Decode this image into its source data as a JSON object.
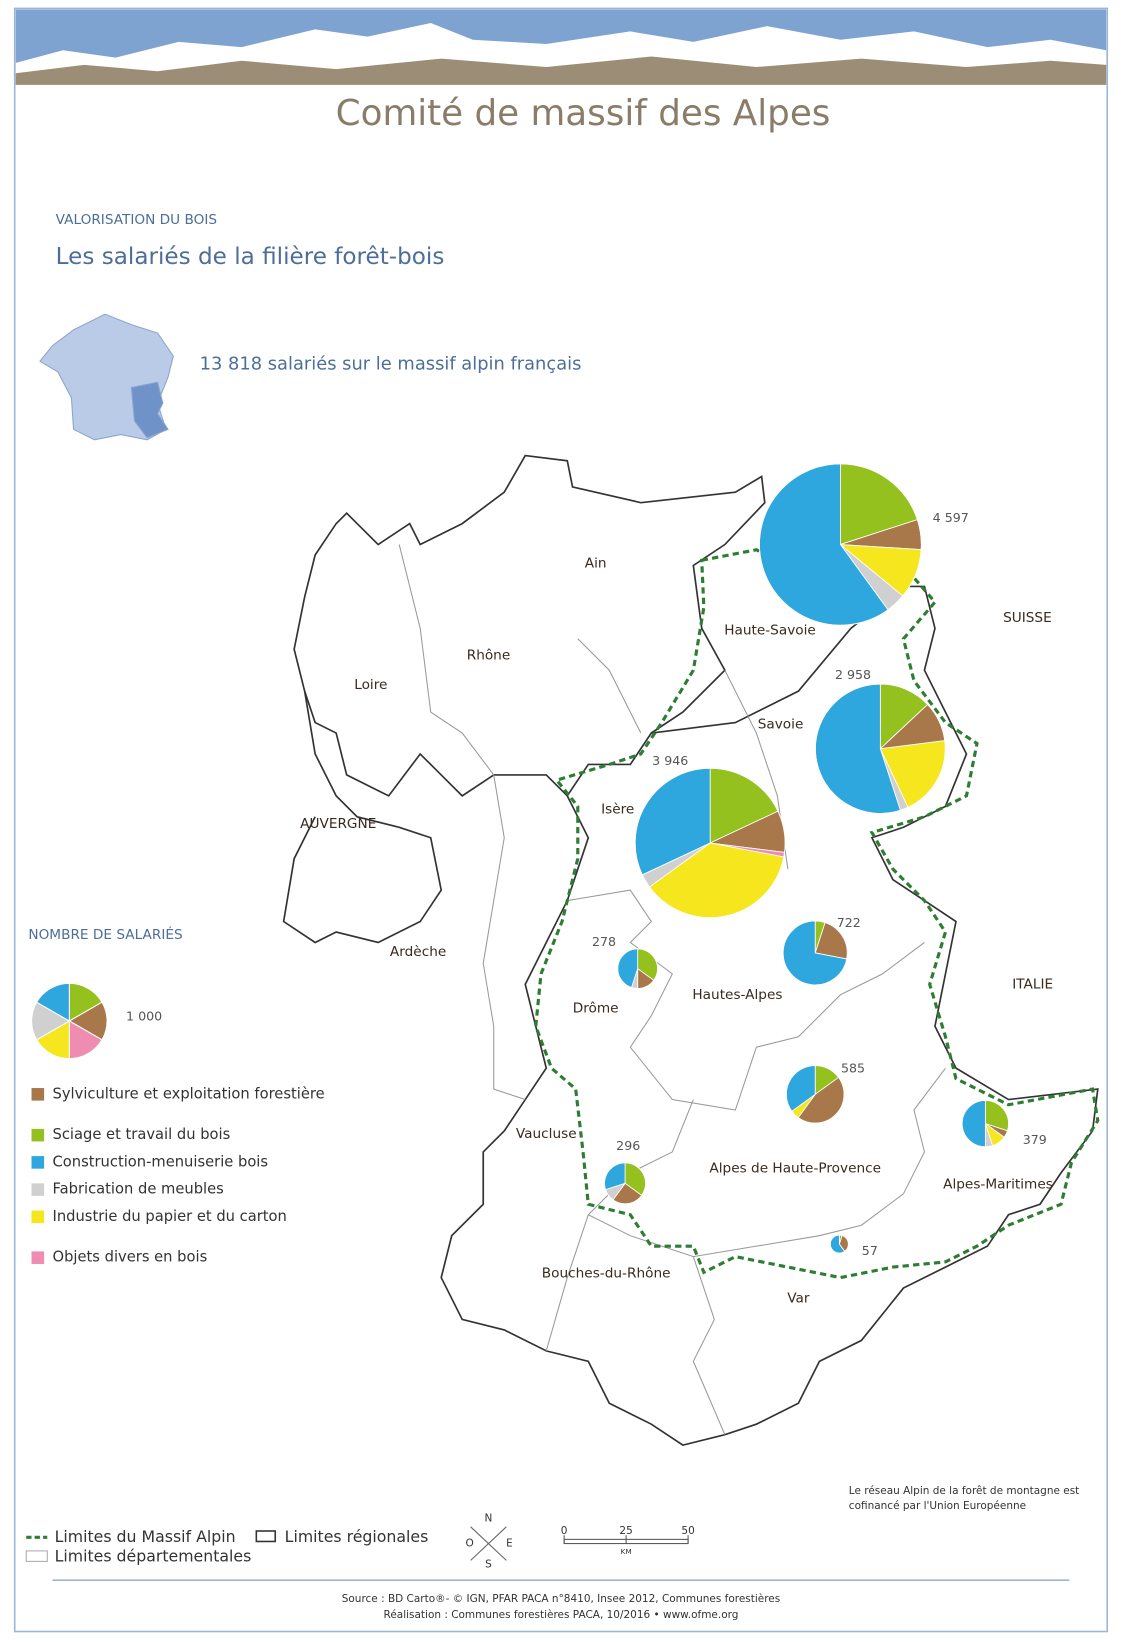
{
  "header": {
    "title": "Comité de massif des Alpes"
  },
  "section": "VALORISATION DU BOIS",
  "subtitle": "Les salariés de la filière forêt-bois",
  "total_note": "13 818 salariés sur le massif alpin français",
  "places": [
    "Ain",
    "Haute-Savoie",
    "Rhône",
    "Loire",
    "Savoie",
    "Isère",
    "AUVERGNE",
    "Ardèche",
    "Drôme",
    "Hautes-Alpes",
    "Vaucluse",
    "Alpes de Haute-Provence",
    "Alpes-Maritimes",
    "Bouches-du-Rhône",
    "Var",
    "SUISSE",
    "ITALIE"
  ],
  "legend": {
    "title": "NOMBRE DE SALARIÉS",
    "size": {
      "value": 1000,
      "label": "1 000"
    },
    "categories": [
      {
        "name": "Sylviculture et exploitation forestière",
        "color": "#a9784a"
      },
      {
        "name": "Sciage et travail du bois",
        "color": "#95c11f"
      },
      {
        "name": "Construction-menuiserie bois",
        "color": "#2ea6de"
      },
      {
        "name": "Fabrication de meubles",
        "color": "#d0d0d0"
      },
      {
        "name": "Industrie du papier et du carton",
        "color": "#f5e61d"
      },
      {
        "name": "Objets divers en bois",
        "color": "#ee8cb1"
      }
    ]
  },
  "pies": [
    {
      "department": "Haute-Savoie",
      "total": {
        "value": 4597,
        "label": "4 597"
      },
      "shares": [
        6,
        20,
        60,
        4,
        10,
        0
      ]
    },
    {
      "department": "Savoie",
      "total": {
        "value": 2958,
        "label": "2 958"
      },
      "shares": [
        10,
        13,
        55,
        2,
        20,
        0
      ]
    },
    {
      "department": "Isère",
      "total": {
        "value": 3946,
        "label": "3 946"
      },
      "shares": [
        9,
        18,
        32,
        3,
        37,
        1
      ]
    },
    {
      "department": "Hautes-Alpes",
      "total": {
        "value": 722,
        "label": "722"
      },
      "shares": [
        23,
        5,
        72,
        0,
        0,
        0
      ]
    },
    {
      "department": "Drôme",
      "total": {
        "value": 278,
        "label": "278"
      },
      "shares": [
        15,
        35,
        45,
        5,
        0,
        0
      ]
    },
    {
      "department": "Alpes de Haute-Provence",
      "total": {
        "value": 585,
        "label": "585"
      },
      "shares": [
        45,
        15,
        35,
        0,
        5,
        0
      ]
    },
    {
      "department": "Alpes-Maritimes",
      "total": {
        "value": 379,
        "label": "379"
      },
      "shares": [
        5,
        30,
        50,
        5,
        10,
        0
      ]
    },
    {
      "department": "Vaucluse",
      "total": {
        "value": 296,
        "label": "296"
      },
      "shares": [
        25,
        35,
        30,
        10,
        0,
        0
      ]
    },
    {
      "department": "Var",
      "total": {
        "value": 57,
        "label": "57"
      },
      "shares": [
        35,
        5,
        60,
        0,
        0,
        0
      ]
    }
  ],
  "boundaries": [
    "Limites du Massif Alpin",
    "Limites régionales",
    "Limites départementales"
  ],
  "compass": [
    "N",
    "O",
    "E",
    "S"
  ],
  "scale": {
    "ticks": [
      0,
      25,
      50
    ],
    "unit": "KM"
  },
  "cofinance": [
    "Le réseau Alpin de la forêt de montagne est",
    "cofinancé par l'Union Européenne"
  ],
  "source": [
    "Source : BD Carto®- © IGN, PFAR PACA n°8410, Insee 2012, Communes forestières",
    "Réalisation : Communes forestières PACA, 10/2016 • www.ofme.org"
  ]
}
